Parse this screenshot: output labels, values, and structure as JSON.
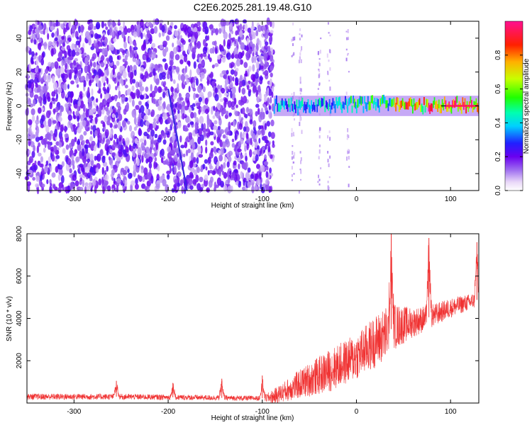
{
  "title": "C2E6.2025.281.19.48.G10",
  "chart_data": [
    {
      "type": "heatmap",
      "name": "spectrogram",
      "xlabel": "Height of straight line (km)",
      "ylabel": "Frequency (Hz)",
      "xlim": [
        -350,
        130
      ],
      "ylim": [
        -50,
        50
      ],
      "xticks": [
        -300,
        -200,
        -100,
        0,
        100
      ],
      "yticks": [
        -40,
        -20,
        0,
        20,
        40
      ],
      "colorbar": {
        "label": "Normalized spectral amplitude",
        "range": [
          0,
          1
        ],
        "ticks": [
          0.0,
          0.2,
          0.4,
          0.6,
          0.8
        ]
      },
      "noise_region_x": [
        -350,
        -88
      ],
      "signal_band": {
        "center_freq": 0,
        "segments": [
          {
            "x0": -88,
            "x1": -10,
            "amplitude": 0.45
          },
          {
            "x0": -10,
            "x1": 40,
            "amplitude": 0.55
          },
          {
            "x0": 40,
            "x1": 75,
            "amplitude": 0.85
          },
          {
            "x0": 75,
            "x1": 130,
            "amplitude": 0.95
          }
        ]
      },
      "drifting_trace": [
        [
          -200,
          10
        ],
        [
          -180,
          -50
        ]
      ]
    },
    {
      "type": "line",
      "name": "snr",
      "xlabel": "Height of straight line (km)",
      "ylabel": "SNR (10 * v/v)",
      "xlim": [
        -350,
        130
      ],
      "ylim": [
        0,
        8000
      ],
      "xticks": [
        -300,
        -200,
        -100,
        0,
        100
      ],
      "yticks": [
        2000,
        4000,
        6000,
        8000
      ],
      "color": "#f03232",
      "trend": {
        "x": [
          -350,
          -250,
          -150,
          -100,
          -88,
          -60,
          -30,
          0,
          20,
          40,
          60,
          80,
          100,
          130
        ],
        "y": [
          300,
          300,
          250,
          220,
          300,
          900,
          1500,
          2200,
          2900,
          3600,
          3800,
          4100,
          4500,
          4900
        ]
      },
      "spread": {
        "x": [
          -350,
          -100,
          -88,
          -60,
          -30,
          0,
          30,
          60,
          90,
          130
        ],
        "y": [
          150,
          120,
          350,
          700,
          1000,
          1100,
          1300,
          700,
          500,
          350
        ]
      },
      "spikes": [
        {
          "x": -255,
          "y": 1050
        },
        {
          "x": -195,
          "y": 950
        },
        {
          "x": -143,
          "y": 1150
        },
        {
          "x": -100,
          "y": 1300
        },
        {
          "x": 37,
          "y": 8000
        },
        {
          "x": 77,
          "y": 7800
        },
        {
          "x": 128,
          "y": 7600
        }
      ]
    }
  ]
}
